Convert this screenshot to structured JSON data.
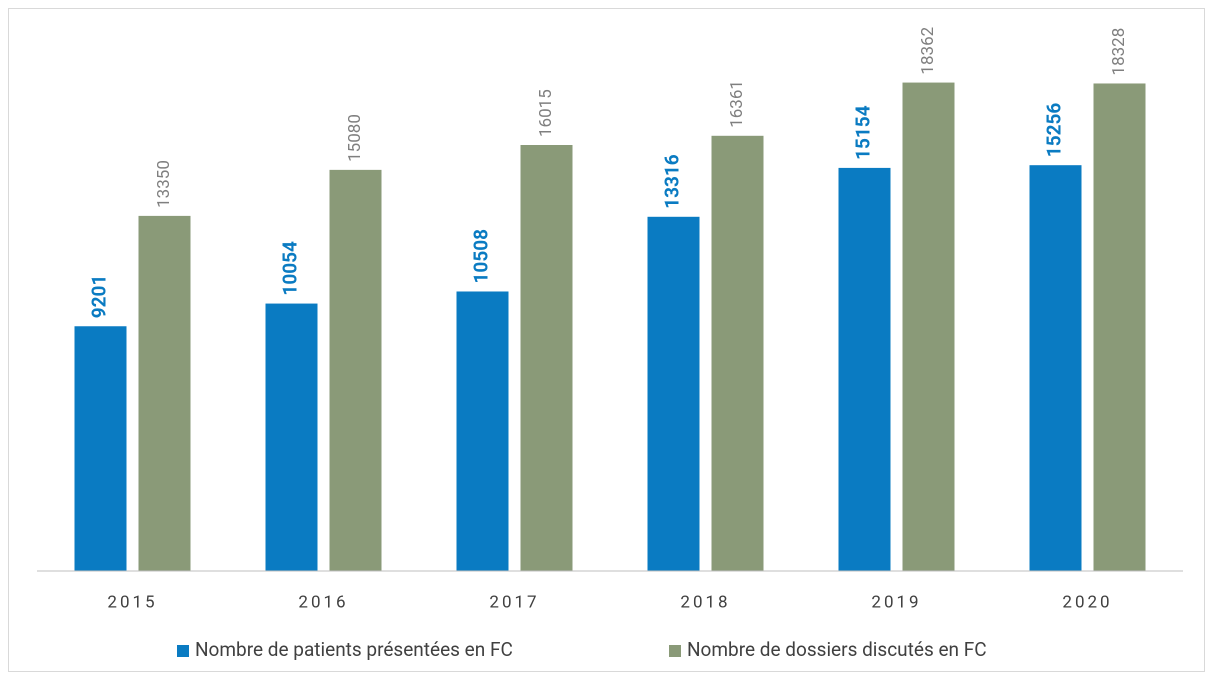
{
  "chart_data": {
    "type": "bar",
    "categories": [
      "2015",
      "2016",
      "2017",
      "2018",
      "2019",
      "2020"
    ],
    "series": [
      {
        "name": "Nombre de patients présentées en FC",
        "color": "#0a7bc2",
        "values": [
          9201,
          10054,
          10508,
          13316,
          15154,
          15256
        ]
      },
      {
        "name": "Nombre de dossiers discutés en FC",
        "color": "#8a9a78",
        "values": [
          13350,
          15080,
          16015,
          16361,
          18362,
          18328
        ]
      }
    ],
    "ylim": [
      0,
      20000
    ],
    "grid": false,
    "legend": "bottom"
  }
}
